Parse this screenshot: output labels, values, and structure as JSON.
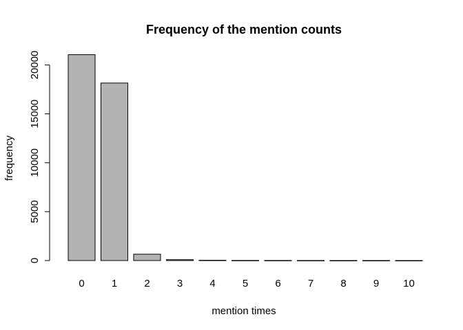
{
  "chart_data": {
    "type": "bar",
    "title": "Frequency of the mention counts",
    "xlabel": "mention times",
    "ylabel": "frequency",
    "categories": [
      "0",
      "1",
      "2",
      "3",
      "4",
      "5",
      "6",
      "7",
      "8",
      "9",
      "10"
    ],
    "values": [
      21050,
      18150,
      650,
      90,
      30,
      15,
      10,
      8,
      5,
      4,
      3
    ],
    "ylim": [
      0,
      22000
    ],
    "yticks": [
      0,
      5000,
      10000,
      15000,
      20000
    ],
    "ytick_labels": [
      "0",
      "5000",
      "10000",
      "15000",
      "20000"
    ],
    "bar_color": "#b3b3b3",
    "grid": false,
    "legend": "none"
  }
}
